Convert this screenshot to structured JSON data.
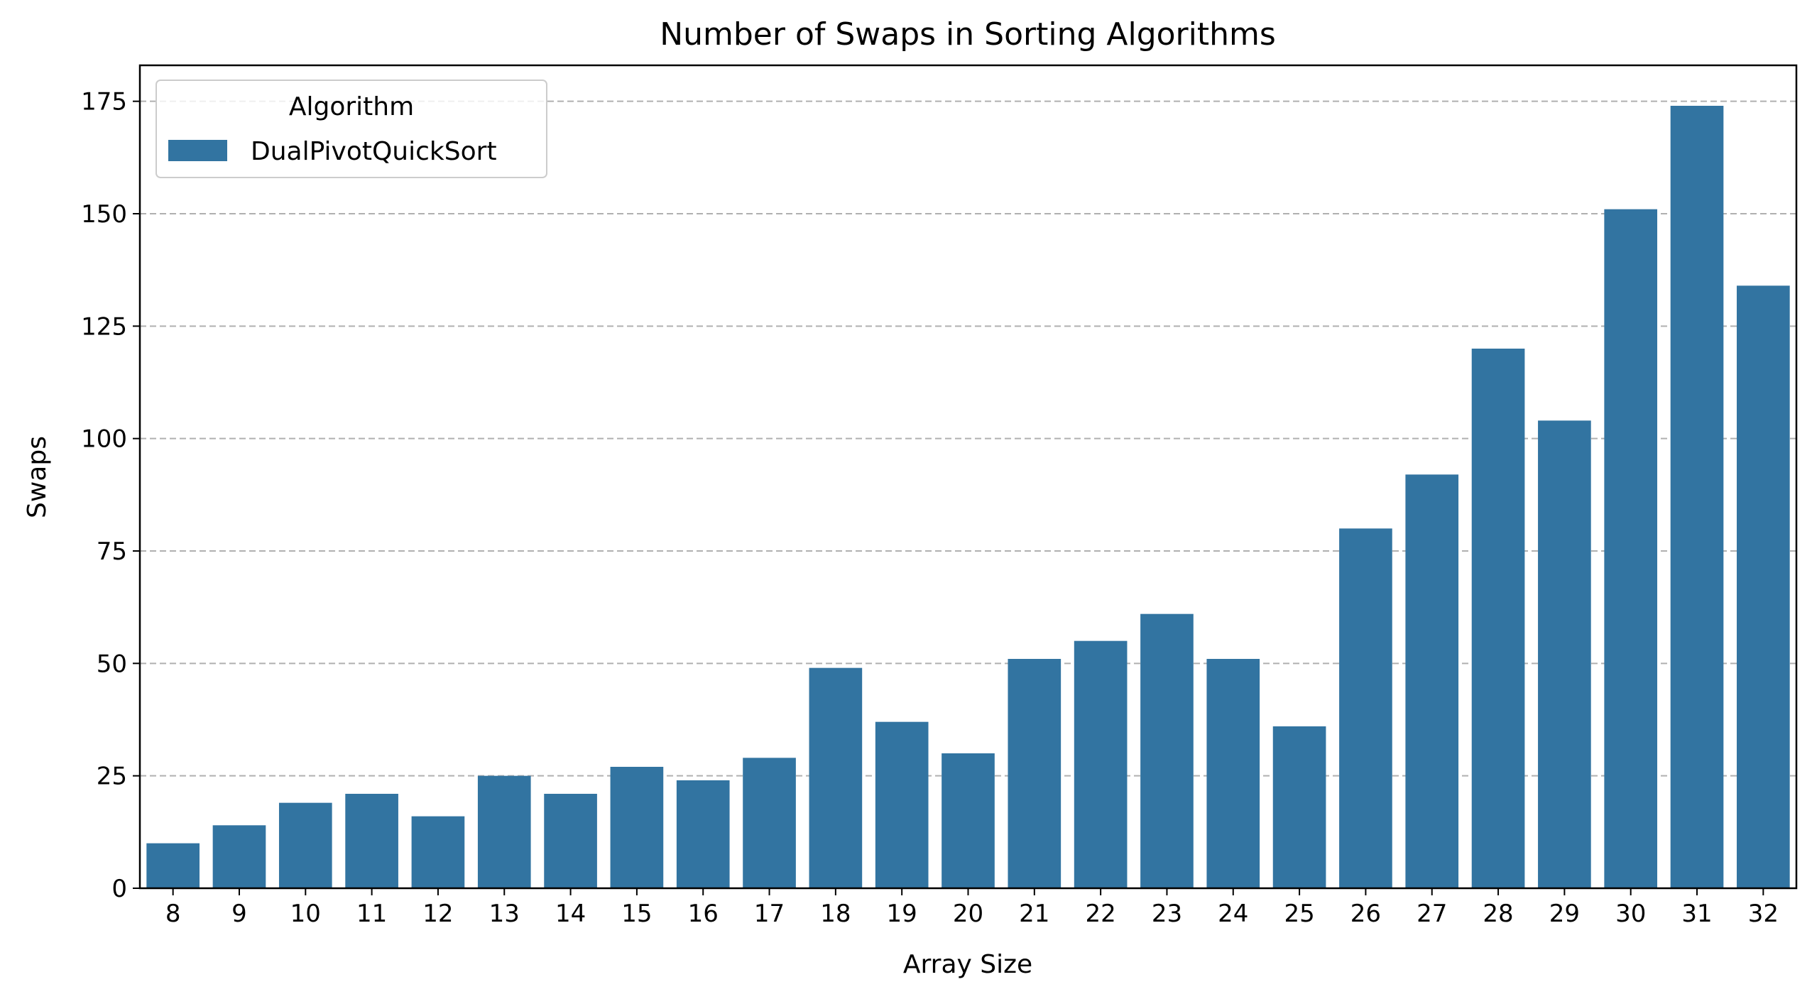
{
  "chart_data": {
    "type": "bar",
    "title": "Number of Swaps in Sorting Algorithms",
    "xlabel": "Array Size",
    "ylabel": "Swaps",
    "categories": [
      "8",
      "9",
      "10",
      "11",
      "12",
      "13",
      "14",
      "15",
      "16",
      "17",
      "18",
      "19",
      "20",
      "21",
      "22",
      "23",
      "24",
      "25",
      "26",
      "27",
      "28",
      "29",
      "30",
      "31",
      "32"
    ],
    "series": [
      {
        "name": "DualPivotQuickSort",
        "color": "#3274a1",
        "values": [
          10,
          14,
          19,
          21,
          16,
          25,
          21,
          27,
          24,
          29,
          49,
          37,
          30,
          51,
          55,
          61,
          51,
          36,
          80,
          92,
          120,
          104,
          151,
          174,
          134
        ]
      }
    ],
    "ylim": [
      0,
      183
    ],
    "yticks": [
      0,
      25,
      50,
      75,
      100,
      125,
      150,
      175
    ],
    "grid": "y-dashed",
    "legend": {
      "title": "Algorithm",
      "placement": "top-left"
    }
  }
}
